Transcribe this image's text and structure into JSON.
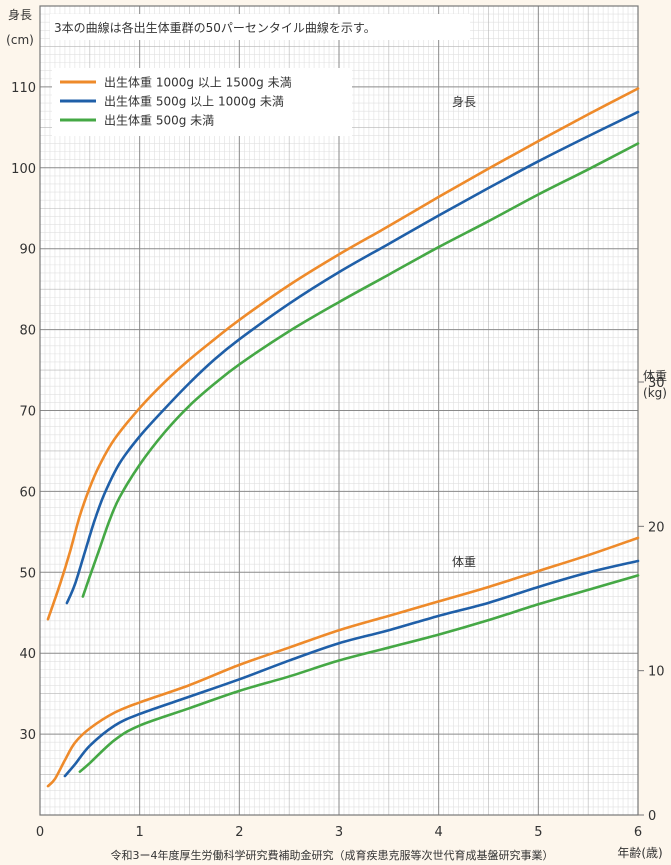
{
  "chart_data": {
    "type": "line",
    "title": "3本の曲線は各出生体重群の50パーセンタイル曲線を示す。",
    "xlabel": "年齢(歳)",
    "x_ticks": [
      "0",
      "1",
      "2",
      "3",
      "4",
      "5",
      "6"
    ],
    "xlim": [
      0,
      6
    ],
    "source_note": "令和3ー4年度厚生労働科学研究費補助金研究（成育疾患克服等次世代育成基盤研究事業）",
    "panels": {
      "height": {
        "label": "身長",
        "ylabel_main": "身長",
        "ylabel_unit": "(cm)",
        "y_ticks": [
          "30",
          "40",
          "50",
          "60",
          "70",
          "80",
          "90",
          "100",
          "110"
        ],
        "ylim": [
          20,
          120
        ]
      },
      "weight": {
        "label": "体重",
        "ylabel_main": "体重",
        "ylabel_unit": "(kg)",
        "y_ticks": [
          "0",
          "10",
          "20",
          "30"
        ],
        "ylim": [
          0,
          30
        ]
      }
    },
    "series": [
      {
        "name": "出生体重 1000g 以上 1500g 未満",
        "color": "#ee8a2a",
        "height_points": [
          [
            0.08,
            44.2
          ],
          [
            0.2,
            48.5
          ],
          [
            0.3,
            52.5
          ],
          [
            0.4,
            57.0
          ],
          [
            0.5,
            60.5
          ],
          [
            0.6,
            63.3
          ],
          [
            0.75,
            66.5
          ],
          [
            1.0,
            70.3
          ],
          [
            1.25,
            73.5
          ],
          [
            1.5,
            76.3
          ],
          [
            1.75,
            78.8
          ],
          [
            2.0,
            81.2
          ],
          [
            2.5,
            85.5
          ],
          [
            3.0,
            89.3
          ],
          [
            3.5,
            92.8
          ],
          [
            4.0,
            96.4
          ],
          [
            4.5,
            99.9
          ],
          [
            5.0,
            103.3
          ],
          [
            5.5,
            106.6
          ],
          [
            6.0,
            109.8
          ]
        ],
        "weight_points": [
          [
            0.08,
            2.0
          ],
          [
            0.15,
            2.5
          ],
          [
            0.25,
            3.8
          ],
          [
            0.35,
            5.0
          ],
          [
            0.5,
            6.0
          ],
          [
            0.75,
            7.1
          ],
          [
            1.0,
            7.8
          ],
          [
            1.5,
            9.0
          ],
          [
            2.0,
            10.4
          ],
          [
            2.5,
            11.6
          ],
          [
            3.0,
            12.8
          ],
          [
            3.5,
            13.8
          ],
          [
            4.0,
            14.8
          ],
          [
            4.5,
            15.8
          ],
          [
            5.0,
            16.9
          ],
          [
            5.5,
            18.0
          ],
          [
            6.0,
            19.2
          ]
        ]
      },
      {
        "name": "出生体重 500g 以上 1000g 未満",
        "color": "#1f5fa8",
        "height_points": [
          [
            0.27,
            46.2
          ],
          [
            0.35,
            48.5
          ],
          [
            0.45,
            52.5
          ],
          [
            0.55,
            56.5
          ],
          [
            0.65,
            59.8
          ],
          [
            0.8,
            63.5
          ],
          [
            1.0,
            66.8
          ],
          [
            1.25,
            70.2
          ],
          [
            1.5,
            73.4
          ],
          [
            1.75,
            76.3
          ],
          [
            2.0,
            78.8
          ],
          [
            2.5,
            83.2
          ],
          [
            3.0,
            87.1
          ],
          [
            3.5,
            90.6
          ],
          [
            4.0,
            94.1
          ],
          [
            4.5,
            97.5
          ],
          [
            5.0,
            100.8
          ],
          [
            5.5,
            103.9
          ],
          [
            6.0,
            106.9
          ]
        ],
        "weight_points": [
          [
            0.25,
            2.7
          ],
          [
            0.35,
            3.5
          ],
          [
            0.5,
            4.8
          ],
          [
            0.75,
            6.2
          ],
          [
            1.0,
            7.0
          ],
          [
            1.5,
            8.2
          ],
          [
            2.0,
            9.4
          ],
          [
            2.5,
            10.7
          ],
          [
            3.0,
            11.9
          ],
          [
            3.5,
            12.8
          ],
          [
            4.0,
            13.8
          ],
          [
            4.5,
            14.7
          ],
          [
            5.0,
            15.8
          ],
          [
            5.5,
            16.8
          ],
          [
            6.0,
            17.6
          ]
        ]
      },
      {
        "name": "出生体重 500g 未満",
        "color": "#45a845",
        "height_points": [
          [
            0.43,
            47.0
          ],
          [
            0.5,
            49.5
          ],
          [
            0.6,
            53.0
          ],
          [
            0.7,
            56.5
          ],
          [
            0.8,
            59.3
          ],
          [
            1.0,
            63.3
          ],
          [
            1.25,
            67.3
          ],
          [
            1.5,
            70.6
          ],
          [
            1.75,
            73.3
          ],
          [
            2.0,
            75.7
          ],
          [
            2.5,
            79.8
          ],
          [
            3.0,
            83.4
          ],
          [
            3.5,
            86.8
          ],
          [
            4.0,
            90.2
          ],
          [
            4.5,
            93.4
          ],
          [
            5.0,
            96.7
          ],
          [
            5.5,
            99.8
          ],
          [
            6.0,
            103.0
          ]
        ],
        "weight_points": [
          [
            0.4,
            3.0
          ],
          [
            0.5,
            3.6
          ],
          [
            0.75,
            5.2
          ],
          [
            1.0,
            6.2
          ],
          [
            1.5,
            7.4
          ],
          [
            2.0,
            8.6
          ],
          [
            2.5,
            9.6
          ],
          [
            3.0,
            10.7
          ],
          [
            3.5,
            11.6
          ],
          [
            4.0,
            12.5
          ],
          [
            4.5,
            13.5
          ],
          [
            5.0,
            14.6
          ],
          [
            5.5,
            15.6
          ],
          [
            6.0,
            16.6
          ]
        ]
      }
    ],
    "grid": true,
    "legend_position": "top-left"
  }
}
